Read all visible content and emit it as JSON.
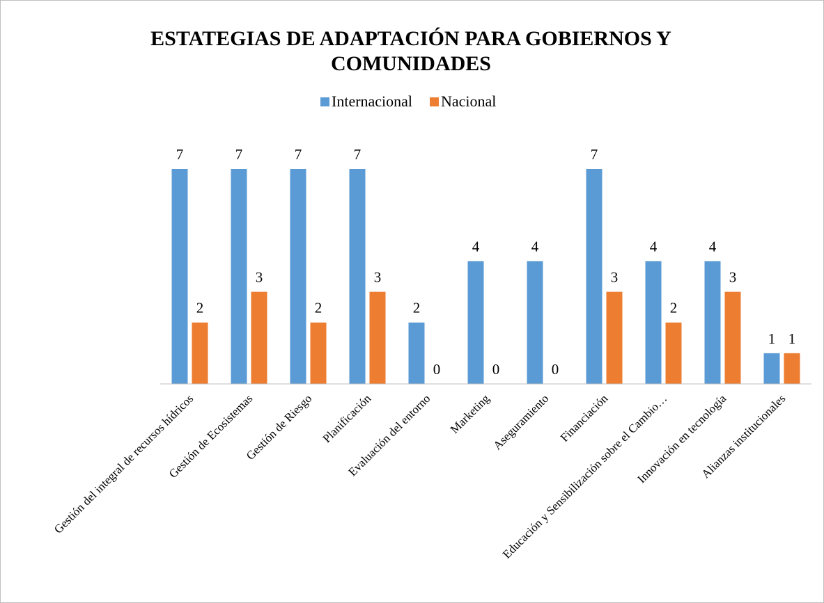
{
  "chart_data": {
    "type": "bar",
    "title": "ESTATEGIAS DE ADAPTACIÓN PARA GOBIERNOS Y COMUNIDADES",
    "categories": [
      "Gestión del integral de recursos hídricos",
      "Gestión de Ecosistemas",
      "Gestión de Riesgo",
      "Planificación",
      "Evaluación del entorno",
      "Marketing",
      "Aseguramiento",
      "Financiación",
      "Educación y Sensibilización sobre el Cambio…",
      "Innovación en tecnología",
      "Alianzas institucionales"
    ],
    "series": [
      {
        "name": "Internacional",
        "color": "#5b9bd5",
        "values": [
          7,
          7,
          7,
          7,
          2,
          4,
          4,
          7,
          4,
          4,
          1
        ]
      },
      {
        "name": "Nacional",
        "color": "#ed7d31",
        "values": [
          2,
          3,
          2,
          3,
          0,
          0,
          0,
          3,
          2,
          3,
          1
        ]
      }
    ],
    "legend": "top"
  }
}
